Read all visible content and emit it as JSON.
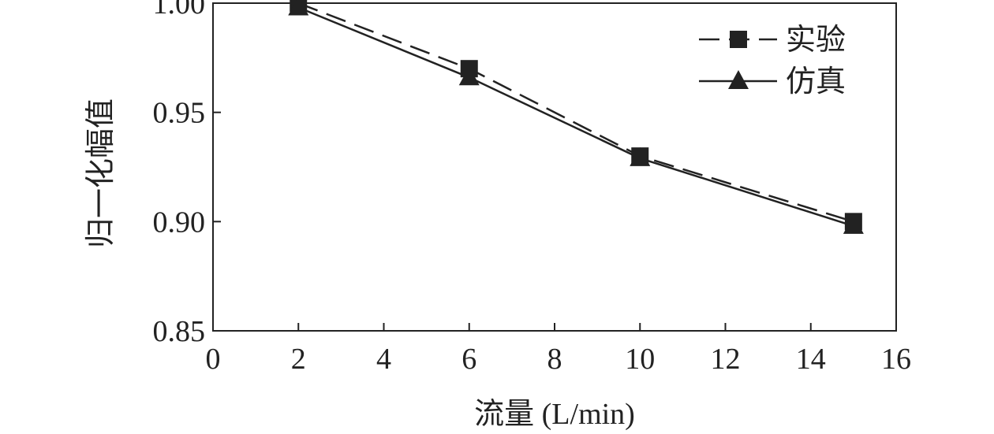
{
  "chart_data": {
    "type": "line",
    "title": "",
    "xlabel": "流量 (L/min)",
    "ylabel": "归一化幅值",
    "xlim": [
      0,
      16
    ],
    "ylim": [
      0.85,
      1.0
    ],
    "xticks": [
      "0",
      "2",
      "4",
      "6",
      "8",
      "10",
      "12",
      "14",
      "16"
    ],
    "xtick_values": [
      0,
      2,
      4,
      6,
      8,
      10,
      12,
      14,
      16
    ],
    "yticks": [
      "0.85",
      "0.90",
      "0.95",
      "1.00"
    ],
    "ytick_values": [
      0.85,
      0.9,
      0.95,
      1.0
    ],
    "grid": false,
    "legend_position": "top-right",
    "series": [
      {
        "name": "实验",
        "line_style": "dashed",
        "marker": "square",
        "color": "#222222",
        "x": [
          2,
          6,
          10,
          15
        ],
        "y": [
          1.0,
          0.97,
          0.93,
          0.9
        ]
      },
      {
        "name": "仿真",
        "line_style": "solid",
        "marker": "triangle",
        "color": "#222222",
        "x": [
          2,
          6,
          10,
          15
        ],
        "y": [
          0.998,
          0.966,
          0.929,
          0.898
        ]
      }
    ]
  }
}
